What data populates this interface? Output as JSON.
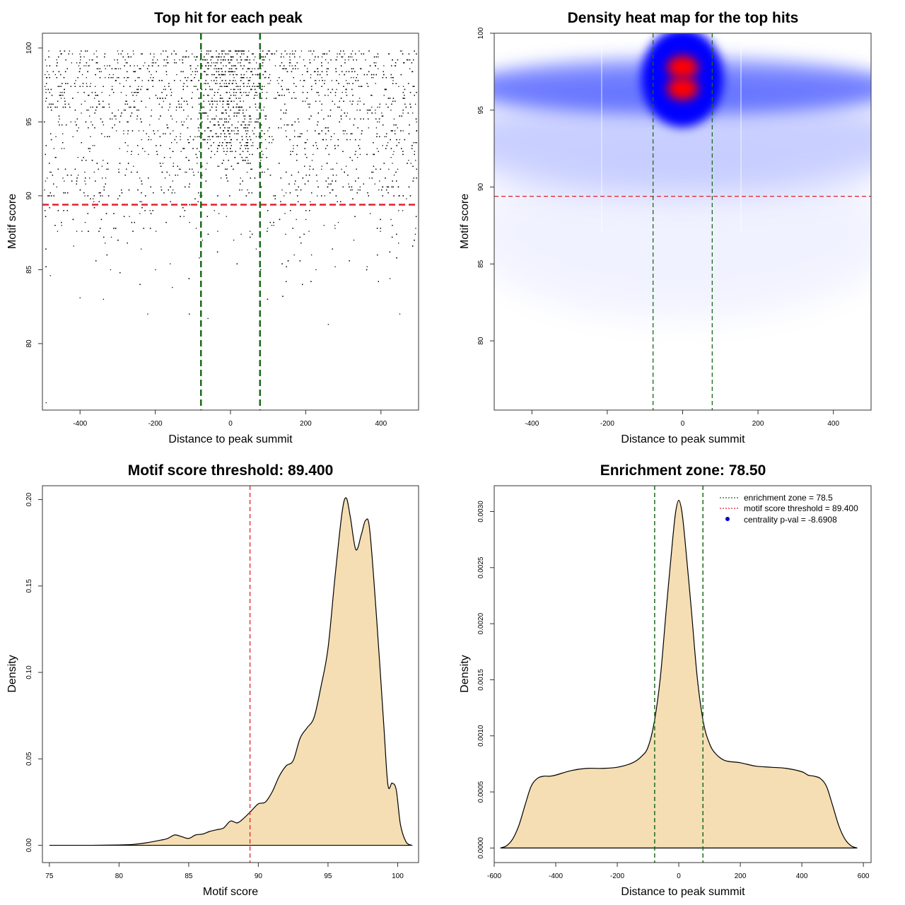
{
  "colors": {
    "threshold_line": "#e0212f",
    "zone_line": "#1a6b1a",
    "density_fill": "#f5deb3",
    "heat_blue": "#0000ff",
    "heat_red": "#ff0000",
    "legend_dot": "#0000cc"
  },
  "chart_data": [
    {
      "type": "scatter",
      "title": "Top hit for each peak",
      "xlabel": "Distance to peak summit",
      "ylabel": "Motif score",
      "xlim": [
        -500,
        500
      ],
      "ylim": [
        75.5,
        101
      ],
      "xticks": [
        "-400",
        "-200",
        "0",
        "200",
        "400"
      ],
      "yticks": [
        "80",
        "85",
        "90",
        "95",
        "100"
      ],
      "hline": 89.4,
      "vlines": [
        -78.5,
        78.5
      ],
      "points": "several thousand top-hit points concentrated at scores 93-100 and near distance 0"
    },
    {
      "type": "heatmap",
      "title": "Density heat map for the top hits",
      "xlabel": "Distance to peak summit",
      "ylabel": "Motif score",
      "xlim": [
        -500,
        500
      ],
      "ylim": [
        75.5,
        100
      ],
      "xticks": [
        "-400",
        "-200",
        "0",
        "200",
        "400"
      ],
      "yticks": [
        "80",
        "85",
        "90",
        "95",
        "100"
      ],
      "hline": 89.4,
      "vlines": [
        -78.5,
        78.5
      ],
      "hotspots": [
        {
          "x": 0,
          "y": 97.8,
          "level": "max"
        },
        {
          "x": 0,
          "y": 96.4,
          "level": "max"
        }
      ]
    },
    {
      "type": "area",
      "title": "Motif score threshold: 89.400",
      "xlabel": "Motif score",
      "ylabel": "Density",
      "xlim": [
        74.5,
        101.5
      ],
      "ylim": [
        -0.01,
        0.208
      ],
      "xticks": [
        "75",
        "80",
        "85",
        "90",
        "95",
        "100"
      ],
      "yticks": [
        "0.00",
        "0.05",
        "0.10",
        "0.15",
        "0.20"
      ],
      "vline": 89.4,
      "x": [
        75,
        78,
        80,
        81,
        82,
        83,
        83.5,
        84,
        84.5,
        85,
        85.5,
        86,
        86.5,
        87,
        87.5,
        88,
        88.5,
        89,
        89.5,
        90,
        90.5,
        91,
        91.5,
        92,
        92.5,
        93,
        93.5,
        94,
        94.5,
        95,
        95.5,
        96,
        96.3,
        96.6,
        97,
        97.4,
        97.7,
        98,
        98.5,
        99,
        99.3,
        99.6,
        99.9,
        100.2,
        100.6,
        101
      ],
      "y": [
        0.0,
        0.0,
        0.0002,
        0.0005,
        0.0015,
        0.003,
        0.004,
        0.006,
        0.005,
        0.004,
        0.006,
        0.0065,
        0.008,
        0.009,
        0.01,
        0.014,
        0.013,
        0.016,
        0.02,
        0.024,
        0.025,
        0.031,
        0.04,
        0.046,
        0.049,
        0.062,
        0.068,
        0.074,
        0.092,
        0.114,
        0.155,
        0.192,
        0.201,
        0.19,
        0.171,
        0.18,
        0.188,
        0.182,
        0.13,
        0.07,
        0.035,
        0.036,
        0.032,
        0.012,
        0.002,
        0.0
      ]
    },
    {
      "type": "area",
      "title": "Enrichment zone: 78.50",
      "xlabel": "Distance to peak summit",
      "ylabel": "Density",
      "xlim": [
        -600,
        625
      ],
      "ylim": [
        -0.00013,
        0.00323
      ],
      "xticks": [
        "-600",
        "-400",
        "-200",
        "0",
        "200",
        "400",
        "600"
      ],
      "yticks": [
        "0.0000",
        "0.0005",
        "0.0010",
        "0.0015",
        "0.0020",
        "0.0025",
        "0.0030"
      ],
      "vlines": [
        -78.5,
        78.5
      ],
      "legend": [
        {
          "label": "enrichment zone = 78.5",
          "style": "dotted",
          "color": "#1a6b1a"
        },
        {
          "label": "motif score threshold = 89.400",
          "style": "dotted",
          "color": "#e0212f"
        },
        {
          "label": "centrality p-val = -8.6908",
          "style": "dot",
          "color": "#0000cc"
        }
      ],
      "x": [
        -580,
        -560,
        -540,
        -520,
        -500,
        -480,
        -460,
        -440,
        -420,
        -400,
        -350,
        -300,
        -250,
        -200,
        -150,
        -120,
        -100,
        -80,
        -60,
        -40,
        -20,
        -10,
        0,
        10,
        20,
        40,
        60,
        80,
        100,
        120,
        150,
        200,
        250,
        300,
        350,
        400,
        420,
        440,
        460,
        480,
        500,
        520,
        540,
        560,
        580
      ],
      "y": [
        0.0,
        2e-05,
        8e-05,
        0.0002,
        0.00038,
        0.00055,
        0.00062,
        0.00064,
        0.00064,
        0.00065,
        0.00069,
        0.00071,
        0.00071,
        0.00072,
        0.00076,
        0.00082,
        0.0009,
        0.00112,
        0.00152,
        0.00215,
        0.00275,
        0.003,
        0.0031,
        0.003,
        0.00275,
        0.00215,
        0.00152,
        0.00112,
        0.00093,
        0.00084,
        0.00078,
        0.00076,
        0.00073,
        0.00072,
        0.00071,
        0.00068,
        0.00065,
        0.00064,
        0.00062,
        0.00055,
        0.00038,
        0.0002,
        8e-05,
        2e-05,
        0.0
      ]
    }
  ]
}
